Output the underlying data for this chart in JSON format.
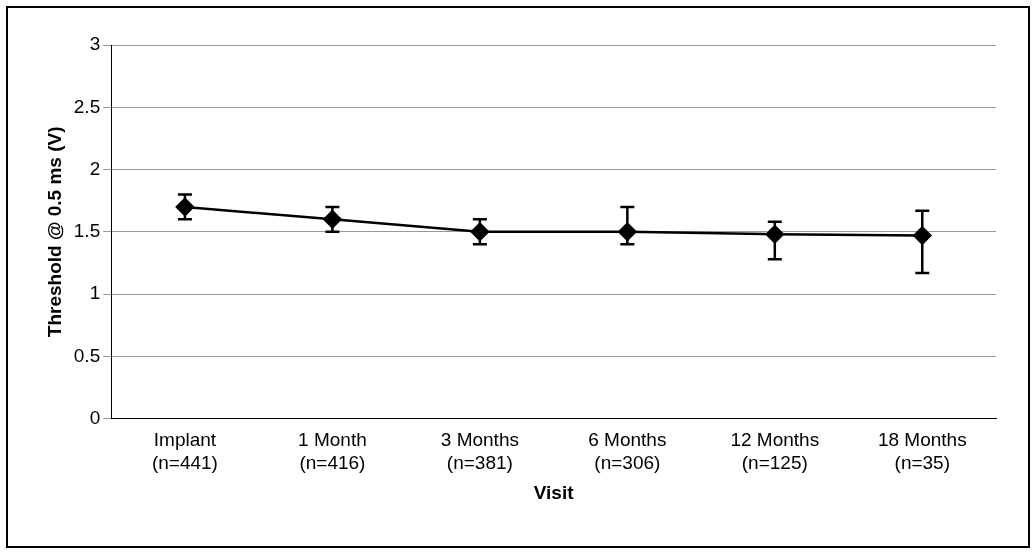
{
  "chart_data": {
    "type": "line",
    "xlabel": "Visit",
    "ylabel": "Threshold @ 0.5 ms (V)",
    "categories": [
      "Implant\n(n=441)",
      "1 Month\n(n=416)",
      "3 Months\n(n=381)",
      "6 Months\n(n=306)",
      "12 Months\n(n=125)",
      "18 Months\n(n=35)"
    ],
    "series": [
      {
        "color": "#000000",
        "values": [
          1.7,
          1.6,
          1.5,
          1.5,
          1.48,
          1.47
        ],
        "errors": [
          [
            1.6,
            1.8
          ],
          [
            1.5,
            1.7
          ],
          [
            1.4,
            1.6
          ],
          [
            1.4,
            1.7
          ],
          [
            1.28,
            1.58
          ],
          [
            1.17,
            1.67
          ]
        ]
      }
    ],
    "ylim": [
      0,
      3
    ],
    "yticks": [
      0,
      0.5,
      1,
      1.5,
      2,
      2.5,
      3
    ],
    "grid": "y",
    "legend": false,
    "marker": "diamond",
    "line_style": "solid"
  }
}
